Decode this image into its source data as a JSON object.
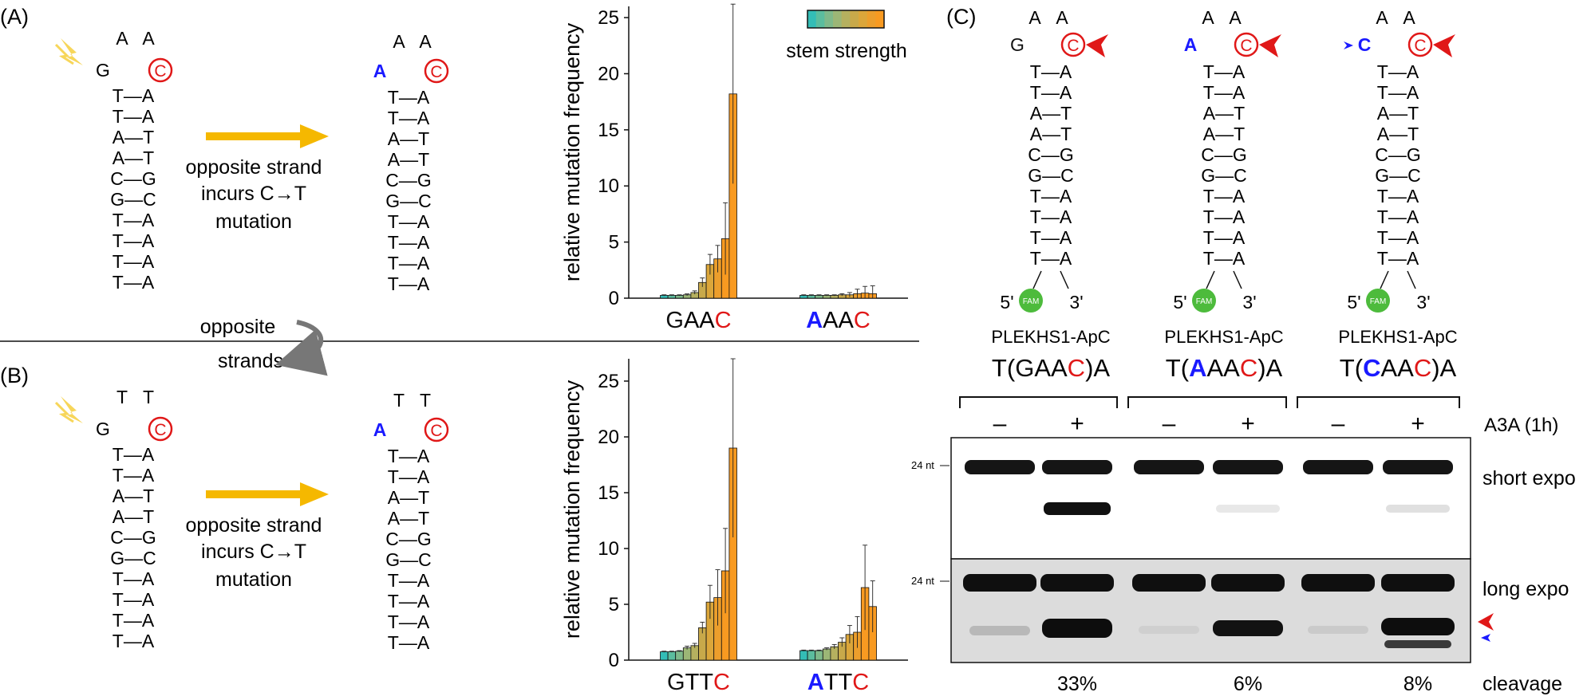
{
  "panels": {
    "A": {
      "label": "(A)",
      "loop": [
        "A",
        "A"
      ],
      "mut_left": "G",
      "mut_right": "A",
      "target": "C",
      "stem": [
        "T—A",
        "T—A",
        "A—T",
        "A—T",
        "C—G",
        "G—C",
        "T—A",
        "T—A",
        "T—A",
        "T—A"
      ],
      "arrow_text": [
        "opposite strand",
        "incurs C→T",
        "mutation"
      ]
    },
    "B": {
      "label": "(B)",
      "loop": [
        "T",
        "T"
      ],
      "mut_left": "G",
      "mut_right": "A",
      "target": "C",
      "stem": [
        "T—A",
        "T—A",
        "A—T",
        "A—T",
        "C—G",
        "G—C",
        "T—A",
        "T—A",
        "T—A",
        "T—A"
      ],
      "arrow_text": [
        "opposite strand",
        "incurs C→T",
        "mutation"
      ]
    },
    "divider": {
      "top": "opposite",
      "bottom": "strands"
    },
    "C": {
      "label": "(C)",
      "hairpins": [
        {
          "loop": [
            "A",
            "A"
          ],
          "left": "G",
          "left_color": "#111111",
          "target": "C",
          "stem": [
            "T—A",
            "T—A",
            "A—T",
            "A—T",
            "C—G",
            "G—C",
            "T—A",
            "T—A",
            "T—A",
            "T—A"
          ],
          "five": "5'",
          "three": "3'",
          "fam": "FAM",
          "name": "PLEKHS1-ApC",
          "motif": [
            "T(",
            "GAA",
            "C",
            ")A"
          ],
          "motif_first_color": "#111111"
        },
        {
          "loop": [
            "A",
            "A"
          ],
          "left": "A",
          "left_color": "#1a1aff",
          "target": "C",
          "stem": [
            "T—A",
            "T—A",
            "A—T",
            "A—T",
            "C—G",
            "G—C",
            "T—A",
            "T—A",
            "T—A",
            "T—A"
          ],
          "five": "5'",
          "three": "3'",
          "fam": "FAM",
          "name": "PLEKHS1-ApC",
          "motif": [
            "T(",
            "AAA",
            "C",
            ")A"
          ],
          "motif_first_color": "#1a1aff"
        },
        {
          "loop": [
            "A",
            "A"
          ],
          "left": "C",
          "left_color": "#1a1aff",
          "target": "C",
          "stem": [
            "T—A",
            "T—A",
            "A—T",
            "A—T",
            "C—G",
            "G—C",
            "T—A",
            "T—A",
            "T—A",
            "T—A"
          ],
          "five": "5'",
          "three": "3'",
          "fam": "FAM",
          "name": "PLEKHS1-ApC",
          "motif": [
            "T(",
            "CAA",
            "C",
            ")A"
          ],
          "motif_first_color": "#1a1aff"
        }
      ],
      "gel": {
        "lanes": [
          "–",
          "+",
          "–",
          "+",
          "–",
          "+"
        ],
        "treatment": "A3A (1h)",
        "marker": "24 nt",
        "short_label": "short expo",
        "long_label": "long expo",
        "cleavage": [
          "33%",
          "6%",
          "8%"
        ],
        "cleavage_label": "cleavage"
      }
    }
  },
  "chart_data": [
    {
      "type": "bar",
      "panel": "A",
      "ylabel": "relative mutation frequency",
      "ylim": [
        0,
        26
      ],
      "yticks": [
        0,
        5,
        10,
        15,
        20,
        25
      ],
      "legend_label": "stem strength",
      "colors": [
        "#33bdb6",
        "#5bbd9e",
        "#7fb98a",
        "#9cb676",
        "#b5b05f",
        "#c8a94a",
        "#dba63a",
        "#ec9e2c",
        "#f89a21"
      ],
      "groups": [
        {
          "label": [
            "GAA",
            "C"
          ],
          "first_color": "#111111",
          "values": [
            0.25,
            0.25,
            0.25,
            0.3,
            0.5,
            1.4,
            3.0,
            3.5,
            5.3,
            18.2
          ],
          "errors": [
            0.05,
            0.05,
            0.05,
            0.08,
            0.15,
            0.4,
            0.9,
            1.2,
            3.2,
            8.0
          ]
        },
        {
          "label": [
            "AAA",
            "C"
          ],
          "first_color": "#1a1aff",
          "values": [
            0.25,
            0.25,
            0.25,
            0.25,
            0.25,
            0.3,
            0.3,
            0.4,
            0.45,
            0.4
          ],
          "errors": [
            0.05,
            0.05,
            0.05,
            0.05,
            0.05,
            0.1,
            0.2,
            0.4,
            0.6,
            0.7
          ]
        }
      ]
    },
    {
      "type": "bar",
      "panel": "B",
      "ylabel": "relative mutation frequency",
      "ylim": [
        0,
        27
      ],
      "yticks": [
        0,
        5,
        10,
        15,
        20,
        25
      ],
      "colors": [
        "#33bdb6",
        "#5bbd9e",
        "#7fb98a",
        "#9cb676",
        "#b5b05f",
        "#c8a94a",
        "#dba63a",
        "#ec9e2c",
        "#f89a21"
      ],
      "groups": [
        {
          "label": [
            "GTT",
            "C"
          ],
          "first_color": "#111111",
          "values": [
            0.75,
            0.75,
            0.8,
            1.1,
            1.3,
            2.9,
            5.2,
            5.6,
            8.0,
            19.0
          ],
          "errors": [
            0.05,
            0.05,
            0.05,
            0.15,
            0.2,
            0.5,
            1.5,
            2.5,
            3.8,
            8.0
          ]
        },
        {
          "label": [
            "ATT",
            "C"
          ],
          "first_color": "#1a1aff",
          "values": [
            0.85,
            0.85,
            0.85,
            1.0,
            1.2,
            1.6,
            2.3,
            2.5,
            6.5,
            4.8
          ],
          "errors": [
            0.05,
            0.05,
            0.05,
            0.1,
            0.2,
            0.4,
            0.8,
            1.4,
            3.8,
            2.3
          ]
        }
      ]
    }
  ]
}
